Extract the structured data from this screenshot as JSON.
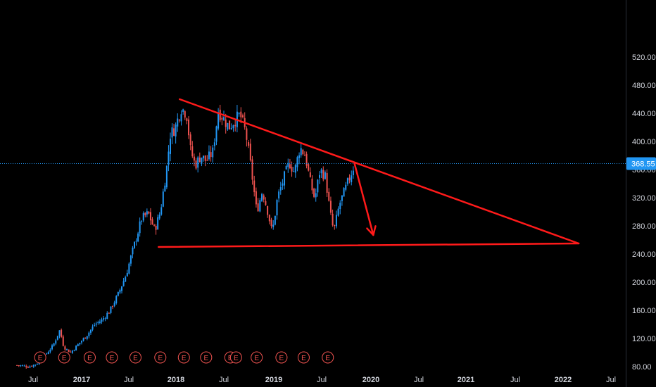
{
  "chart_data": {
    "type": "candlestick",
    "title": "",
    "xlabel": "",
    "ylabel": "",
    "ylim": [
      80,
      550
    ],
    "y_ticks": [
      "80.00",
      "120.00",
      "160.00",
      "200.00",
      "240.00",
      "280.00",
      "320.00",
      "360.00",
      "400.00",
      "440.00",
      "480.00",
      "520.00"
    ],
    "x_ticks": [
      "Jul",
      "2017",
      "Jul",
      "2018",
      "Jul",
      "2019",
      "Jul",
      "2020",
      "Jul",
      "2021",
      "Jul",
      "2022",
      "Jul"
    ],
    "x_tick_dates": [
      "2016-07-01",
      "2017-01-01",
      "2017-07-01",
      "2018-01-01",
      "2018-07-01",
      "2019-01-01",
      "2019-07-01",
      "2020-01-01",
      "2020-07-01",
      "2021-01-01",
      "2021-07-01",
      "2022-01-01",
      "2022-07-01"
    ],
    "xlim": [
      "2016-04-15",
      "2022-09-01"
    ],
    "last_price": "368.55",
    "last_price_value": 368.55,
    "colors": {
      "up": "#2196f3",
      "down": "#ef5350",
      "line": "#ff1a1a",
      "background": "#000000",
      "price_line": "#2196f3"
    },
    "price_path": [
      [
        "2016-05-01",
        82
      ],
      [
        "2016-06-15",
        80
      ],
      [
        "2016-07-15",
        84
      ],
      [
        "2016-08-15",
        96
      ],
      [
        "2016-09-15",
        110
      ],
      [
        "2016-10-10",
        132
      ],
      [
        "2016-10-25",
        108
      ],
      [
        "2016-11-20",
        100
      ],
      [
        "2016-12-20",
        112
      ],
      [
        "2017-01-20",
        124
      ],
      [
        "2017-02-20",
        140
      ],
      [
        "2017-03-20",
        146
      ],
      [
        "2017-04-20",
        160
      ],
      [
        "2017-05-20",
        182
      ],
      [
        "2017-06-20",
        210
      ],
      [
        "2017-07-20",
        250
      ],
      [
        "2017-08-20",
        290
      ],
      [
        "2017-09-15",
        298
      ],
      [
        "2017-10-10",
        274
      ],
      [
        "2017-11-01",
        300
      ],
      [
        "2017-11-25",
        360
      ],
      [
        "2017-12-10",
        410
      ],
      [
        "2017-12-30",
        420
      ],
      [
        "2018-01-20",
        448
      ],
      [
        "2018-02-10",
        440
      ],
      [
        "2018-02-25",
        388
      ],
      [
        "2018-03-15",
        366
      ],
      [
        "2018-04-05",
        380
      ],
      [
        "2018-04-25",
        372
      ],
      [
        "2018-05-20",
        385
      ],
      [
        "2018-06-10",
        444
      ],
      [
        "2018-07-01",
        432
      ],
      [
        "2018-07-20",
        420
      ],
      [
        "2018-08-10",
        430
      ],
      [
        "2018-08-30",
        438
      ],
      [
        "2018-09-20",
        412
      ],
      [
        "2018-10-10",
        360
      ],
      [
        "2018-10-30",
        300
      ],
      [
        "2018-11-20",
        330
      ],
      [
        "2018-12-10",
        300
      ],
      [
        "2018-12-26",
        270
      ],
      [
        "2019-01-15",
        320
      ],
      [
        "2019-02-10",
        350
      ],
      [
        "2019-03-01",
        370
      ],
      [
        "2019-03-20",
        356
      ],
      [
        "2019-04-10",
        392
      ],
      [
        "2019-04-30",
        380
      ],
      [
        "2019-05-20",
        340
      ],
      [
        "2019-06-05",
        318
      ],
      [
        "2019-06-25",
        360
      ],
      [
        "2019-07-15",
        350
      ],
      [
        "2019-08-01",
        300
      ],
      [
        "2019-08-15",
        272
      ],
      [
        "2019-09-05",
        310
      ],
      [
        "2019-09-25",
        330
      ],
      [
        "2019-10-15",
        350
      ],
      [
        "2019-11-01",
        368
      ]
    ],
    "earnings_label": "E",
    "earnings_dates": [
      "2016-07-28",
      "2016-10-27",
      "2017-02-01",
      "2017-04-27",
      "2017-07-27",
      "2017-11-01",
      "2018-01-31",
      "2018-04-25",
      "2018-07-25",
      "2018-08-15",
      "2018-10-30",
      "2019-01-30",
      "2019-04-24",
      "2019-07-24"
    ],
    "annotations": [
      {
        "type": "trendline",
        "name": "descending-resistance",
        "from": [
          "2018-01-15",
          460
        ],
        "to": [
          "2022-03-01",
          255
        ]
      },
      {
        "type": "trendline",
        "name": "horizontal-support",
        "from": [
          "2017-10-25",
          250
        ],
        "to": [
          "2022-03-01",
          255
        ]
      },
      {
        "type": "arrow",
        "name": "projected-drop",
        "from": [
          "2019-11-01",
          368
        ],
        "to": [
          "2020-01-10",
          267
        ]
      }
    ]
  }
}
